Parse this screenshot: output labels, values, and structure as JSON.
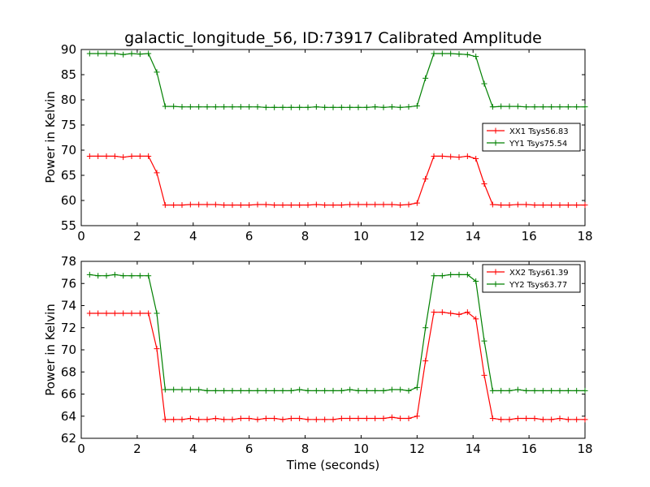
{
  "chart_data": [
    {
      "type": "line",
      "title": "galactic_longitude_56, ID:73917 Calibrated Amplitude",
      "xlabel": "",
      "ylabel": "Power in Kelvin",
      "xlim": [
        0,
        18
      ],
      "ylim": [
        55,
        90
      ],
      "xticks": [
        0,
        2,
        4,
        6,
        8,
        10,
        12,
        14,
        16,
        18
      ],
      "yticks": [
        55,
        60,
        65,
        70,
        75,
        80,
        85,
        90
      ],
      "legend_position": "center-right",
      "grid": false,
      "x": [
        0.3,
        0.6,
        0.9,
        1.2,
        1.5,
        1.8,
        2.1,
        2.4,
        2.7,
        3.0,
        3.3,
        3.6,
        3.9,
        4.2,
        4.5,
        4.8,
        5.1,
        5.4,
        5.7,
        6.0,
        6.3,
        6.6,
        6.9,
        7.2,
        7.5,
        7.8,
        8.1,
        8.4,
        8.7,
        9.0,
        9.3,
        9.6,
        9.9,
        10.2,
        10.5,
        10.8,
        11.1,
        11.4,
        11.7,
        12.0,
        12.3,
        12.6,
        12.9,
        13.2,
        13.5,
        13.8,
        14.1,
        14.4,
        14.7,
        15.0,
        15.3,
        15.6,
        15.9,
        16.2,
        16.5,
        16.8,
        17.1,
        17.4,
        17.7,
        18.0
      ],
      "series": [
        {
          "name": "XX1 Tsys56.83",
          "color": "#ff0000",
          "values": [
            68.8,
            68.8,
            68.8,
            68.8,
            68.6,
            68.8,
            68.8,
            68.8,
            65.5,
            59.1,
            59.1,
            59.1,
            59.2,
            59.2,
            59.2,
            59.2,
            59.1,
            59.1,
            59.1,
            59.1,
            59.2,
            59.2,
            59.1,
            59.1,
            59.1,
            59.1,
            59.1,
            59.2,
            59.1,
            59.1,
            59.1,
            59.2,
            59.2,
            59.2,
            59.2,
            59.2,
            59.2,
            59.1,
            59.2,
            59.5,
            64.3,
            68.8,
            68.8,
            68.7,
            68.6,
            68.8,
            68.3,
            63.3,
            59.2,
            59.1,
            59.1,
            59.2,
            59.2,
            59.1,
            59.1,
            59.1,
            59.1,
            59.1,
            59.1,
            59.1
          ]
        },
        {
          "name": "YY1 Tsys75.54",
          "color": "#008000",
          "values": [
            89.2,
            89.2,
            89.2,
            89.2,
            89.0,
            89.2,
            89.1,
            89.2,
            85.5,
            78.7,
            78.7,
            78.6,
            78.6,
            78.6,
            78.6,
            78.6,
            78.6,
            78.6,
            78.6,
            78.6,
            78.6,
            78.5,
            78.5,
            78.5,
            78.5,
            78.5,
            78.5,
            78.6,
            78.5,
            78.5,
            78.5,
            78.5,
            78.5,
            78.5,
            78.6,
            78.5,
            78.6,
            78.5,
            78.6,
            78.8,
            84.3,
            89.2,
            89.2,
            89.2,
            89.1,
            89.0,
            88.6,
            83.2,
            78.6,
            78.7,
            78.7,
            78.7,
            78.6,
            78.6,
            78.6,
            78.6,
            78.6,
            78.6,
            78.6,
            78.6
          ]
        }
      ]
    },
    {
      "type": "line",
      "title": "",
      "xlabel": "Time (seconds)",
      "ylabel": "Power in Kelvin",
      "xlim": [
        0,
        18
      ],
      "ylim": [
        62,
        78
      ],
      "xticks": [
        0,
        2,
        4,
        6,
        8,
        10,
        12,
        14,
        16,
        18
      ],
      "yticks": [
        62,
        64,
        66,
        68,
        70,
        72,
        74,
        76,
        78
      ],
      "legend_position": "top-right",
      "grid": false,
      "x": [
        0.3,
        0.6,
        0.9,
        1.2,
        1.5,
        1.8,
        2.1,
        2.4,
        2.7,
        3.0,
        3.3,
        3.6,
        3.9,
        4.2,
        4.5,
        4.8,
        5.1,
        5.4,
        5.7,
        6.0,
        6.3,
        6.6,
        6.9,
        7.2,
        7.5,
        7.8,
        8.1,
        8.4,
        8.7,
        9.0,
        9.3,
        9.6,
        9.9,
        10.2,
        10.5,
        10.8,
        11.1,
        11.4,
        11.7,
        12.0,
        12.3,
        12.6,
        12.9,
        13.2,
        13.5,
        13.8,
        14.1,
        14.4,
        14.7,
        15.0,
        15.3,
        15.6,
        15.9,
        16.2,
        16.5,
        16.8,
        17.1,
        17.4,
        17.7,
        18.0
      ],
      "series": [
        {
          "name": "XX2 Tsys61.39",
          "color": "#ff0000",
          "values": [
            73.3,
            73.3,
            73.3,
            73.3,
            73.3,
            73.3,
            73.3,
            73.3,
            70.1,
            63.7,
            63.7,
            63.7,
            63.8,
            63.7,
            63.7,
            63.8,
            63.7,
            63.7,
            63.8,
            63.8,
            63.7,
            63.8,
            63.8,
            63.7,
            63.8,
            63.8,
            63.7,
            63.7,
            63.7,
            63.7,
            63.8,
            63.8,
            63.8,
            63.8,
            63.8,
            63.8,
            63.9,
            63.8,
            63.8,
            64.0,
            69.0,
            73.4,
            73.4,
            73.3,
            73.2,
            73.4,
            72.8,
            67.7,
            63.8,
            63.7,
            63.7,
            63.8,
            63.8,
            63.8,
            63.7,
            63.7,
            63.8,
            63.7,
            63.7,
            63.7
          ]
        },
        {
          "name": "YY2 Tsys63.77",
          "color": "#008000",
          "values": [
            76.8,
            76.7,
            76.7,
            76.8,
            76.7,
            76.7,
            76.7,
            76.7,
            73.3,
            66.4,
            66.4,
            66.4,
            66.4,
            66.4,
            66.3,
            66.3,
            66.3,
            66.3,
            66.3,
            66.3,
            66.3,
            66.3,
            66.3,
            66.3,
            66.3,
            66.4,
            66.3,
            66.3,
            66.3,
            66.3,
            66.3,
            66.4,
            66.3,
            66.3,
            66.3,
            66.3,
            66.4,
            66.4,
            66.3,
            66.6,
            72.0,
            76.7,
            76.7,
            76.8,
            76.8,
            76.8,
            76.2,
            70.8,
            66.3,
            66.3,
            66.3,
            66.4,
            66.3,
            66.3,
            66.3,
            66.3,
            66.3,
            66.3,
            66.3,
            66.3
          ]
        }
      ]
    }
  ]
}
